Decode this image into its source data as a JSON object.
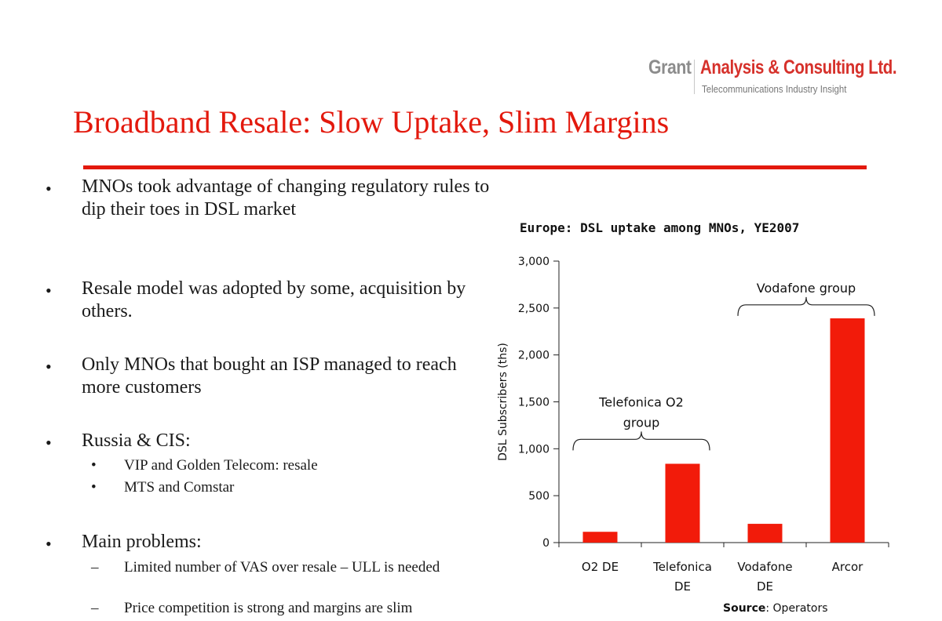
{
  "logo": {
    "brand": "Grant",
    "name": "Analysis & Consulting Ltd.",
    "tagline": "Telecommunications Industry Insight"
  },
  "title": "Broadband Resale: Slow Uptake, Slim Margins",
  "bullets": [
    {
      "text": "MNOs took advantage of changing regulatory rules to dip their toes in DSL market",
      "sub": []
    },
    {
      "text": "Resale model was adopted by some, acquisition by others.",
      "sub": []
    },
    {
      "text": "Only MNOs that bought an ISP managed to reach more customers",
      "sub": []
    },
    {
      "text": "Russia & CIS:",
      "sub": [
        {
          "marker": "•",
          "text": "VIP and Golden Telecom: resale"
        },
        {
          "marker": "•",
          "text": "MTS and Comstar"
        }
      ]
    },
    {
      "text": "Main problems:",
      "sub": [
        {
          "marker": "–",
          "text": "Limited number of VAS over resale – ULL is needed"
        },
        {
          "marker": "–",
          "text": "Price competition is strong and margins are slim"
        }
      ]
    }
  ],
  "chart_data": {
    "type": "bar",
    "title": "Europe: DSL uptake among  MNOs, YE2007",
    "ylabel": "DSL Subscribers (ths)",
    "xlabel": "",
    "categories": [
      "O2 DE",
      "Telefonica DE",
      "Vodafone DE",
      "Arcor"
    ],
    "category_lines": [
      [
        "O2 DE"
      ],
      [
        "Telefonica",
        "DE"
      ],
      [
        "Vodafone",
        "DE"
      ],
      [
        "Arcor"
      ]
    ],
    "values": [
      115,
      840,
      200,
      2390
    ],
    "ylim": [
      0,
      3000
    ],
    "yticks": [
      0,
      500,
      1000,
      1500,
      2000,
      2500,
      3000
    ],
    "ytick_labels": [
      "0",
      "500",
      "1,000",
      "1,500",
      "2,000",
      "2,500",
      "3,000"
    ],
    "grid": false,
    "bar_color": "#f21b0a",
    "groups": [
      {
        "label_lines": [
          "Telefonica O2",
          "group"
        ],
        "from": 0,
        "to": 1
      },
      {
        "label_lines": [
          "Vodafone group"
        ],
        "from": 2,
        "to": 3
      }
    ]
  },
  "source": {
    "label": "Source",
    "text": ": Operators"
  },
  "colors": {
    "accent": "#e3190d",
    "bar": "#f21b0a"
  }
}
